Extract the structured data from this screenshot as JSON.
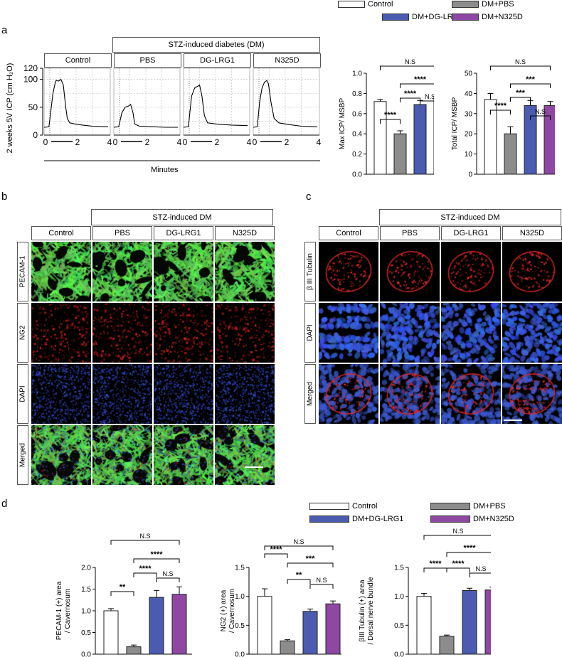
{
  "colors": {
    "control": "#ffffff",
    "pbs": "#8c8c8c",
    "dglrg1": "#4a5bb0",
    "n325d": "#8e47a3",
    "green": "#3faa3a",
    "red": "#d42020",
    "blue": "#2a3fb0"
  },
  "legend_top": {
    "control": "Control",
    "pbs": "DM+PBS",
    "dglrg1": "DM+DG-LRG1",
    "n325d": "DM+N325D"
  },
  "legend_d": {
    "control": "Control",
    "pbs": "DM+PBS",
    "dglrg1": "DM+DG-LRG1",
    "n325d": "DM+N325D"
  },
  "panel_a": {
    "label": "a",
    "dm_header": "STZ-induced diabetes (DM)",
    "groups": [
      "Control",
      "PBS",
      "DG-LRG1",
      "N325D"
    ],
    "ylabel": "2 weeks 5V ICP (cm H₂O)",
    "yticks": [
      "0",
      "50",
      "100",
      "120"
    ],
    "xticks": [
      "0",
      "2",
      "4"
    ],
    "xlabel": "Minutes",
    "traces_peak": [
      100,
      55,
      90,
      98
    ]
  },
  "panel_b": {
    "label": "b",
    "header": "STZ-induced DM",
    "columns": [
      "Control",
      "PBS",
      "DG-LRG1",
      "N325D"
    ],
    "rows": [
      "PECAM-1",
      "NG2",
      "DAPI",
      "Merged"
    ]
  },
  "panel_c": {
    "label": "c",
    "header": "STZ-induced DM",
    "columns": [
      "Control",
      "PBS",
      "DG-LRG1",
      "N325D"
    ],
    "rows": [
      "β III Tubulin",
      "DAPI",
      "Merged"
    ]
  },
  "panel_d": {
    "label": "d"
  },
  "chart_data": [
    {
      "type": "bar",
      "ylabel": "Max ICP/ MSBP",
      "categories": [
        "Control",
        "DM+PBS",
        "DM+DG-LRG1",
        "DM+N325D"
      ],
      "values": [
        0.72,
        0.4,
        0.69,
        0.77
      ],
      "errors": [
        0.02,
        0.03,
        0.04,
        0.04
      ],
      "ylim": [
        0,
        1.0
      ],
      "yticks": [
        "0.0",
        "0.2",
        "0.4",
        "0.6",
        "0.8",
        "1.0"
      ],
      "sig": [
        {
          "a": 0,
          "b": 1,
          "t": "****"
        },
        {
          "a": 1,
          "b": 2,
          "t": "****"
        },
        {
          "a": 2,
          "b": 3,
          "t": "N.S"
        },
        {
          "a": 1,
          "b": 3,
          "t": "****"
        },
        {
          "a": 0,
          "b": 3,
          "t": "N.S"
        }
      ]
    },
    {
      "type": "bar",
      "ylabel": "Total ICP/ MSBP",
      "categories": [
        "Control",
        "DM+PBS",
        "DM+DG-LRG1",
        "DM+N325D"
      ],
      "values": [
        37,
        20,
        34,
        34
      ],
      "errors": [
        3,
        3.5,
        2.5,
        2
      ],
      "ylim": [
        0,
        50
      ],
      "yticks": [
        "0",
        "10",
        "20",
        "30",
        "40",
        "50"
      ],
      "sig": [
        {
          "a": 0,
          "b": 1,
          "t": "****"
        },
        {
          "a": 1,
          "b": 2,
          "t": "***"
        },
        {
          "a": 2,
          "b": 3,
          "t": "N.S"
        },
        {
          "a": 1,
          "b": 3,
          "t": "***"
        },
        {
          "a": 0,
          "b": 3,
          "t": "N.S"
        }
      ]
    },
    {
      "type": "bar",
      "ylabel": "PECAM-1 (+) area / Cavernosum",
      "categories": [
        "Control",
        "DM+PBS",
        "DM+DG-LRG1",
        "DM+N325D"
      ],
      "values": [
        1.0,
        0.17,
        1.31,
        1.38
      ],
      "errors": [
        0.05,
        0.04,
        0.16,
        0.17
      ],
      "ylim": [
        0,
        2.0
      ],
      "yticks": [
        "0.0",
        "0.5",
        "1.0",
        "1.5",
        "2.0"
      ],
      "sig": [
        {
          "a": 0,
          "b": 1,
          "t": "**"
        },
        {
          "a": 1,
          "b": 2,
          "t": "****"
        },
        {
          "a": 2,
          "b": 3,
          "t": "N.S"
        },
        {
          "a": 1,
          "b": 3,
          "t": "****"
        },
        {
          "a": 0,
          "b": 3,
          "t": "N.S"
        }
      ]
    },
    {
      "type": "bar",
      "ylabel": "NG2 (+) area / Cavernosum",
      "categories": [
        "Control",
        "DM+PBS",
        "DM+DG-LRG1",
        "DM+N325D"
      ],
      "values": [
        1.0,
        0.23,
        0.74,
        0.87
      ],
      "errors": [
        0.13,
        0.02,
        0.04,
        0.05
      ],
      "ylim": [
        0,
        1.5
      ],
      "yticks": [
        "0.0",
        "0.5",
        "1.0",
        "1.5"
      ],
      "sig": [
        {
          "a": 0,
          "b": 1,
          "t": "****"
        },
        {
          "a": 1,
          "b": 2,
          "t": "**"
        },
        {
          "a": 2,
          "b": 3,
          "t": "N.S"
        },
        {
          "a": 1,
          "b": 3,
          "t": "***"
        },
        {
          "a": 0,
          "b": 3,
          "t": "N.S"
        }
      ]
    },
    {
      "type": "bar",
      "ylabel": "βIII Tubulin (+) area / Dorsal nerve bundle",
      "categories": [
        "Control",
        "DM+PBS",
        "DM+DG-LRG1",
        "DM+N325D"
      ],
      "values": [
        1.0,
        0.31,
        1.1,
        1.11
      ],
      "errors": [
        0.05,
        0.02,
        0.04,
        0.05
      ],
      "ylim": [
        0,
        1.5
      ],
      "yticks": [
        "0.0",
        "0.5",
        "1.0",
        "1.5"
      ],
      "sig": [
        {
          "a": 0,
          "b": 1,
          "t": "****"
        },
        {
          "a": 1,
          "b": 2,
          "t": "****"
        },
        {
          "a": 2,
          "b": 3,
          "t": "N.S"
        },
        {
          "a": 1,
          "b": 3,
          "t": "****"
        },
        {
          "a": 0,
          "b": 3,
          "t": "N.S"
        }
      ]
    }
  ]
}
